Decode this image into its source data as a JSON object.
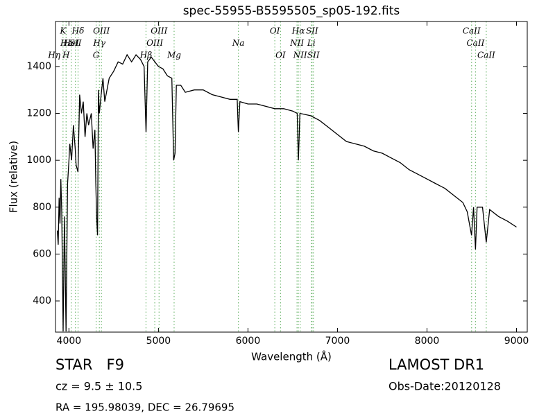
{
  "chart_data": {
    "type": "line",
    "title": "spec-55955-B5595505_sp05-192.fits",
    "x_label": "Wavelength (Å)",
    "y_label": "Flux (relative)",
    "x": [
      3870,
      3880,
      3890,
      3900,
      3910,
      3920,
      3935,
      3950,
      3968,
      3985,
      4000,
      4010,
      4030,
      4050,
      4070,
      4080,
      4101,
      4120,
      4140,
      4160,
      4180,
      4200,
      4220,
      4250,
      4270,
      4290,
      4300,
      4310,
      4320,
      4330,
      4340,
      4360,
      4380,
      4400,
      4450,
      4500,
      4550,
      4600,
      4650,
      4700,
      4750,
      4800,
      4840,
      4861,
      4880,
      4920,
      4960,
      5000,
      5050,
      5100,
      5150,
      5170,
      5185,
      5200,
      5250,
      5300,
      5400,
      5500,
      5600,
      5700,
      5800,
      5880,
      5893,
      5910,
      6000,
      6100,
      6200,
      6300,
      6400,
      6500,
      6550,
      6563,
      6580,
      6700,
      6800,
      6900,
      7000,
      7100,
      7200,
      7300,
      7400,
      7500,
      7600,
      7700,
      7800,
      7900,
      8000,
      8100,
      8200,
      8300,
      8400,
      8450,
      8498,
      8520,
      8542,
      8560,
      8620,
      8662,
      8700,
      8800,
      8900,
      9000
    ],
    "series": [
      {
        "name": "flux",
        "color": "#000000",
        "values": [
          700,
          640,
          840,
          730,
          920,
          780,
          270,
          760,
          270,
          900,
          1000,
          1070,
          1000,
          1150,
          1050,
          980,
          950,
          1280,
          1200,
          1250,
          1100,
          1200,
          1150,
          1200,
          1050,
          1130,
          900,
          750,
          680,
          1300,
          1200,
          1280,
          1350,
          1250,
          1350,
          1380,
          1420,
          1410,
          1450,
          1420,
          1450,
          1430,
          1400,
          1120,
          1420,
          1440,
          1420,
          1400,
          1390,
          1360,
          1350,
          1000,
          1030,
          1320,
          1320,
          1290,
          1300,
          1300,
          1280,
          1270,
          1260,
          1260,
          1120,
          1250,
          1240,
          1240,
          1230,
          1220,
          1220,
          1210,
          1200,
          1000,
          1200,
          1190,
          1170,
          1140,
          1110,
          1080,
          1070,
          1060,
          1040,
          1030,
          1010,
          990,
          960,
          940,
          920,
          900,
          880,
          850,
          820,
          780,
          680,
          800,
          620,
          800,
          800,
          650,
          790,
          760,
          740,
          715
        ]
      }
    ],
    "xlim": [
      3850,
      9120
    ],
    "ylim": [
      267,
      1592
    ],
    "xticks": [
      4000,
      5000,
      6000,
      7000,
      8000,
      9000
    ],
    "yticks": [
      400,
      600,
      800,
      1000,
      1200,
      1400
    ],
    "line_color": "#77bb77",
    "annotations": [
      {
        "label": "K",
        "x": 3934
      },
      {
        "label": "Hε",
        "x": 3970
      },
      {
        "label": "Hη",
        "x": 3835
      },
      {
        "label": "Hδ",
        "x": 4102
      },
      {
        "label": "HeI",
        "x": 4026
      },
      {
        "label": "H",
        "x": 3968
      },
      {
        "label": "OIII",
        "x": 4363
      },
      {
        "label": "SII",
        "x": 4072
      },
      {
        "label": "G",
        "x": 4304
      },
      {
        "label": "OIII",
        "x": 5007
      },
      {
        "label": "Hγ",
        "x": 4340
      },
      {
        "label": "Hβ",
        "x": 4861
      },
      {
        "label": "OI",
        "x": 6300
      },
      {
        "label": "OIII",
        "x": 4959
      },
      {
        "label": "Mg",
        "x": 5175
      },
      {
        "label": "Hα",
        "x": 6563
      },
      {
        "label": "Na",
        "x": 5893
      },
      {
        "label": "OI",
        "x": 6364
      },
      {
        "label": "SII",
        "x": 6716
      },
      {
        "label": "NII",
        "x": 6548
      },
      {
        "label": "NII",
        "x": 6583
      },
      {
        "label": "CaII",
        "x": 8498
      },
      {
        "label": "Li",
        "x": 6708
      },
      {
        "label": "SII",
        "x": 6731
      },
      {
        "label": "",
        "x": null
      },
      {
        "label": "CaII",
        "x": 8542
      },
      {
        "label": "CaII",
        "x": 8662
      }
    ]
  },
  "info": {
    "object": "STAR   F9",
    "cz": "cz = 9.5 ± 10.5",
    "coords": "RA = 195.98039, DEC = 26.79695",
    "survey": "LAMOST DR1",
    "obs_date": "Obs-Date:20120128"
  }
}
